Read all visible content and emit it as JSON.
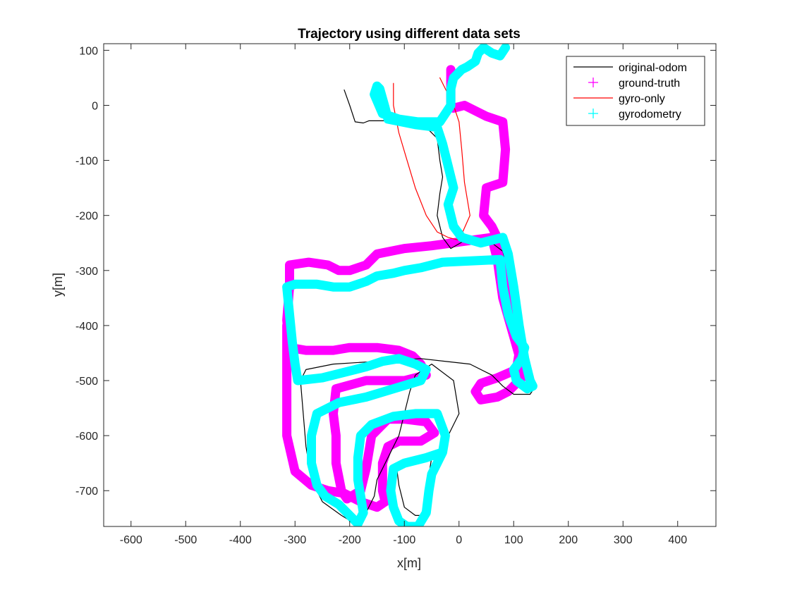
{
  "chart_data": {
    "type": "line",
    "title": "Trajectory using different data sets",
    "xlabel": "x[m]",
    "ylabel": "y[m]",
    "xlim": [
      -650,
      470
    ],
    "ylim": [
      -765,
      112
    ],
    "xticks": [
      -600,
      -500,
      -400,
      -300,
      -200,
      -100,
      0,
      100,
      200,
      300,
      400
    ],
    "yticks": [
      -700,
      -600,
      -500,
      -400,
      -300,
      -200,
      -100,
      0,
      100
    ],
    "grid": false,
    "legend_position": "top-right",
    "series": [
      {
        "name": "original-odom",
        "style": "line",
        "color": "#000000",
        "points": [
          [
            -210,
            28
          ],
          [
            -200,
            0
          ],
          [
            -190,
            -30
          ],
          [
            -175,
            -32
          ],
          [
            -165,
            -28
          ],
          [
            -125,
            -28
          ],
          [
            -80,
            -30
          ],
          [
            -55,
            -45
          ],
          [
            -40,
            -60
          ],
          [
            -35,
            -100
          ],
          [
            -30,
            -130
          ],
          [
            -35,
            -160
          ],
          [
            -40,
            -200
          ],
          [
            -30,
            -240
          ],
          [
            -15,
            -260
          ],
          [
            20,
            -240
          ],
          [
            60,
            -250
          ],
          [
            80,
            -265
          ],
          [
            90,
            -300
          ],
          [
            100,
            -360
          ],
          [
            110,
            -430
          ],
          [
            120,
            -470
          ],
          [
            135,
            -490
          ],
          [
            140,
            -510
          ],
          [
            130,
            -525
          ],
          [
            100,
            -525
          ],
          [
            80,
            -510
          ],
          [
            60,
            -490
          ],
          [
            20,
            -470
          ],
          [
            -70,
            -460
          ],
          [
            -150,
            -465
          ],
          [
            -230,
            -470
          ],
          [
            -280,
            -480
          ],
          [
            -290,
            -500
          ],
          [
            -285,
            -560
          ],
          [
            -280,
            -620
          ],
          [
            -270,
            -680
          ],
          [
            -250,
            -720
          ],
          [
            -215,
            -745
          ],
          [
            -190,
            -760
          ],
          [
            -170,
            -740
          ],
          [
            -155,
            -710
          ],
          [
            -150,
            -680
          ],
          [
            -130,
            -640
          ],
          [
            -110,
            -600
          ],
          [
            -100,
            -560
          ],
          [
            -90,
            -520
          ],
          [
            -80,
            -490
          ],
          [
            -50,
            -470
          ],
          [
            -10,
            -500
          ],
          [
            0,
            -560
          ],
          [
            -20,
            -600
          ],
          [
            -30,
            -620
          ],
          [
            -50,
            -640
          ],
          [
            -60,
            -700
          ],
          [
            -60,
            -745
          ],
          [
            -80,
            -745
          ],
          [
            -100,
            -730
          ],
          [
            -110,
            -690
          ],
          [
            -115,
            -650
          ]
        ]
      },
      {
        "name": "ground-truth",
        "style": "marker",
        "color": "#ff00ff",
        "points": [
          [
            -15,
            65
          ],
          [
            -15,
            0
          ],
          [
            -10,
            -5
          ],
          [
            10,
            0
          ],
          [
            50,
            -20
          ],
          [
            80,
            -30
          ],
          [
            85,
            -80
          ],
          [
            80,
            -140
          ],
          [
            50,
            -150
          ],
          [
            45,
            -200
          ],
          [
            60,
            -220
          ],
          [
            75,
            -250
          ],
          [
            90,
            -300
          ],
          [
            100,
            -370
          ],
          [
            108,
            -420
          ],
          [
            110,
            -450
          ],
          [
            105,
            -480
          ],
          [
            70,
            -495
          ],
          [
            40,
            -505
          ],
          [
            30,
            -520
          ],
          [
            40,
            -535
          ],
          [
            70,
            -530
          ],
          [
            90,
            -520
          ],
          [
            110,
            -500
          ],
          [
            120,
            -490
          ],
          [
            100,
            -420
          ],
          [
            80,
            -350
          ],
          [
            70,
            -280
          ],
          [
            60,
            -240
          ],
          [
            -50,
            -255
          ],
          [
            -100,
            -260
          ],
          [
            -150,
            -270
          ],
          [
            -170,
            -290
          ],
          [
            -200,
            -300
          ],
          [
            -220,
            -300
          ],
          [
            -240,
            -290
          ],
          [
            -275,
            -285
          ],
          [
            -310,
            -290
          ],
          [
            -310,
            -330
          ],
          [
            -315,
            -390
          ],
          [
            -310,
            -440
          ],
          [
            -280,
            -445
          ],
          [
            -230,
            -445
          ],
          [
            -200,
            -440
          ],
          [
            -150,
            -440
          ],
          [
            -110,
            -445
          ],
          [
            -85,
            -455
          ],
          [
            -70,
            -470
          ],
          [
            -60,
            -490
          ],
          [
            -100,
            -500
          ],
          [
            -170,
            -500
          ],
          [
            -225,
            -515
          ],
          [
            -230,
            -560
          ],
          [
            -225,
            -600
          ],
          [
            -225,
            -650
          ],
          [
            -215,
            -700
          ],
          [
            -205,
            -715
          ],
          [
            -180,
            -700
          ],
          [
            -170,
            -660
          ],
          [
            -165,
            -630
          ],
          [
            -160,
            -600
          ],
          [
            -130,
            -570
          ],
          [
            -100,
            -570
          ],
          [
            -60,
            -575
          ],
          [
            -45,
            -595
          ],
          [
            -70,
            -610
          ],
          [
            -110,
            -610
          ],
          [
            -130,
            -620
          ],
          [
            -140,
            -650
          ],
          [
            -140,
            -700
          ],
          [
            -135,
            -720
          ],
          [
            -150,
            -730
          ],
          [
            -180,
            -720
          ],
          [
            -210,
            -705
          ],
          [
            -240,
            -700
          ],
          [
            -270,
            -690
          ],
          [
            -300,
            -665
          ],
          [
            -315,
            -600
          ],
          [
            -315,
            -500
          ],
          [
            -315,
            -400
          ]
        ]
      },
      {
        "name": "gyro-only",
        "style": "line",
        "color": "#ff0000",
        "points": [
          [
            -120,
            40
          ],
          [
            -120,
            0
          ],
          [
            -110,
            -50
          ],
          [
            -95,
            -100
          ],
          [
            -80,
            -150
          ],
          [
            -60,
            -200
          ],
          [
            -40,
            -230
          ],
          [
            -20,
            -240
          ],
          [
            0,
            -245
          ],
          [
            20,
            -200
          ],
          [
            10,
            -140
          ],
          [
            5,
            -80
          ],
          [
            0,
            -30
          ],
          [
            -10,
            0
          ],
          [
            -25,
            30
          ],
          [
            -35,
            50
          ]
        ]
      },
      {
        "name": "gyrodometry",
        "style": "marker",
        "color": "#00ffff",
        "points": [
          [
            85,
            105
          ],
          [
            75,
            90
          ],
          [
            60,
            95
          ],
          [
            45,
            105
          ],
          [
            35,
            95
          ],
          [
            30,
            80
          ],
          [
            15,
            70
          ],
          [
            5,
            65
          ],
          [
            -10,
            50
          ],
          [
            -15,
            30
          ],
          [
            -15,
            0
          ],
          [
            -25,
            -15
          ],
          [
            -35,
            -30
          ],
          [
            -75,
            -30
          ],
          [
            -110,
            -25
          ],
          [
            -140,
            -15
          ],
          [
            -155,
            20
          ],
          [
            -150,
            35
          ],
          [
            -145,
            30
          ],
          [
            -135,
            -5
          ],
          [
            -130,
            -25
          ],
          [
            -80,
            -35
          ],
          [
            -40,
            -40
          ],
          [
            -30,
            -70
          ],
          [
            -20,
            -110
          ],
          [
            -10,
            -150
          ],
          [
            -20,
            -180
          ],
          [
            -10,
            -220
          ],
          [
            5,
            -240
          ],
          [
            40,
            -250
          ],
          [
            80,
            -240
          ],
          [
            90,
            -270
          ],
          [
            100,
            -330
          ],
          [
            110,
            -400
          ],
          [
            120,
            -460
          ],
          [
            130,
            -500
          ],
          [
            135,
            -510
          ],
          [
            125,
            -515
          ],
          [
            105,
            -500
          ],
          [
            100,
            -480
          ],
          [
            115,
            -460
          ],
          [
            120,
            -440
          ],
          [
            105,
            -420
          ],
          [
            90,
            -380
          ],
          [
            80,
            -330
          ],
          [
            75,
            -280
          ],
          [
            -30,
            -285
          ],
          [
            -70,
            -295
          ],
          [
            -100,
            -300
          ],
          [
            -120,
            -305
          ],
          [
            -150,
            -310
          ],
          [
            -170,
            -320
          ],
          [
            -200,
            -330
          ],
          [
            -230,
            -330
          ],
          [
            -260,
            -325
          ],
          [
            -300,
            -325
          ],
          [
            -315,
            -330
          ],
          [
            -310,
            -380
          ],
          [
            -305,
            -430
          ],
          [
            -300,
            -470
          ],
          [
            -295,
            -500
          ],
          [
            -250,
            -495
          ],
          [
            -210,
            -485
          ],
          [
            -170,
            -475
          ],
          [
            -140,
            -465
          ],
          [
            -110,
            -460
          ],
          [
            -80,
            -470
          ],
          [
            -60,
            -480
          ],
          [
            -70,
            -500
          ],
          [
            -120,
            -515
          ],
          [
            -170,
            -530
          ],
          [
            -220,
            -540
          ],
          [
            -260,
            -560
          ],
          [
            -270,
            -600
          ],
          [
            -270,
            -650
          ],
          [
            -260,
            -690
          ],
          [
            -245,
            -710
          ],
          [
            -220,
            -725
          ],
          [
            -200,
            -745
          ],
          [
            -185,
            -760
          ],
          [
            -175,
            -740
          ],
          [
            -180,
            -710
          ],
          [
            -185,
            -680
          ],
          [
            -185,
            -640
          ],
          [
            -180,
            -600
          ],
          [
            -160,
            -580
          ],
          [
            -120,
            -565
          ],
          [
            -80,
            -560
          ],
          [
            -40,
            -560
          ],
          [
            -25,
            -600
          ],
          [
            -30,
            -630
          ],
          [
            -60,
            -640
          ],
          [
            -100,
            -650
          ],
          [
            -120,
            -660
          ],
          [
            -125,
            -700
          ],
          [
            -120,
            -730
          ],
          [
            -110,
            -755
          ],
          [
            -95,
            -765
          ],
          [
            -75,
            -765
          ],
          [
            -60,
            -740
          ],
          [
            -55,
            -700
          ],
          [
            -50,
            -670
          ],
          [
            -40,
            -650
          ],
          [
            -30,
            -630
          ]
        ]
      }
    ]
  }
}
